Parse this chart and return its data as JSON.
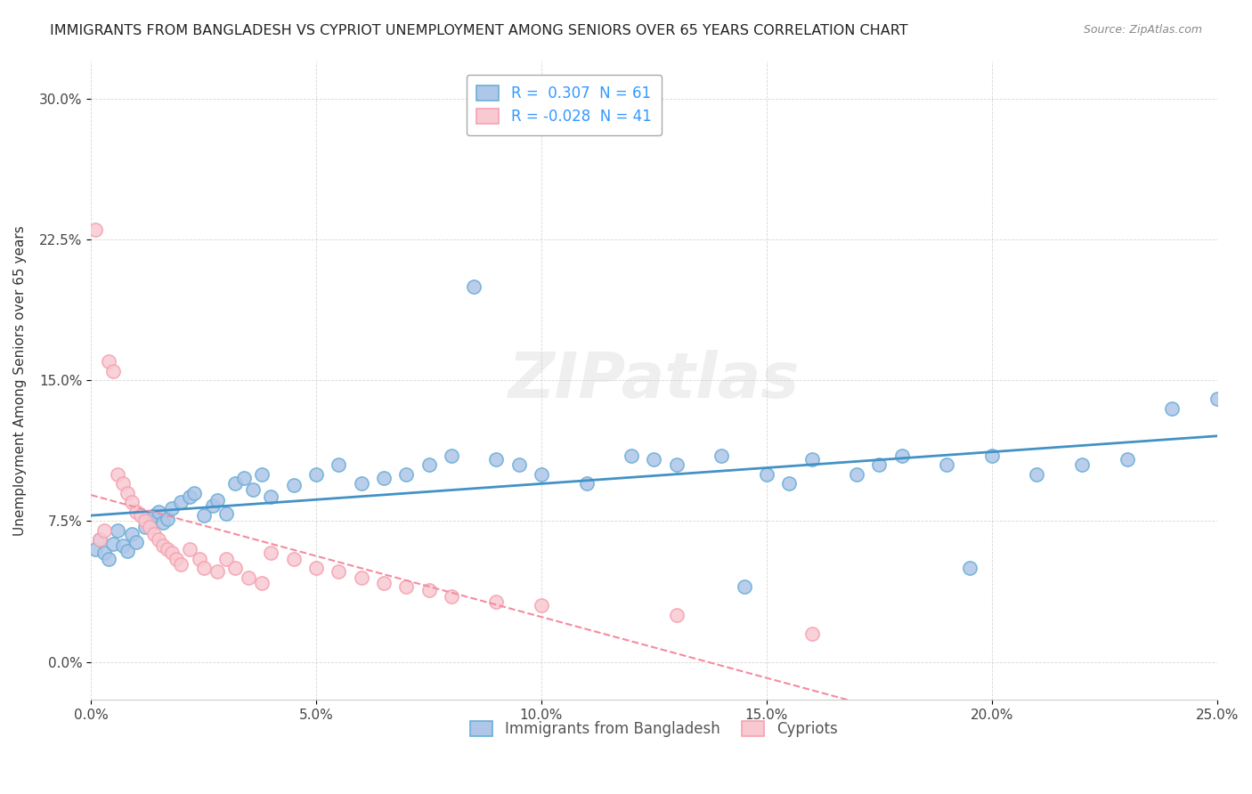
{
  "title": "IMMIGRANTS FROM BANGLADESH VS CYPRIOT UNEMPLOYMENT AMONG SENIORS OVER 65 YEARS CORRELATION CHART",
  "source": "Source: ZipAtlas.com",
  "xlabel": "",
  "ylabel": "Unemployment Among Seniors over 65 years",
  "xlim": [
    0.0,
    0.25
  ],
  "ylim": [
    -0.02,
    0.32
  ],
  "xticks": [
    0.0,
    0.05,
    0.1,
    0.15,
    0.2,
    0.25
  ],
  "yticks": [
    0.0,
    0.075,
    0.15,
    0.225,
    0.3
  ],
  "xtick_labels": [
    "0.0%",
    "5.0%",
    "10.0%",
    "15.0%",
    "20.0%",
    "25.0%"
  ],
  "ytick_labels": [
    "0.0%",
    "7.5%",
    "15.0%",
    "22.5%",
    "30.0%"
  ],
  "legend_r1": "R =  0.307",
  "legend_n1": "N = 61",
  "legend_r2": "R = -0.028",
  "legend_n2": "N = 41",
  "blue_color": "#6baed6",
  "blue_fill": "#aec6e8",
  "pink_color": "#f4a3b0",
  "pink_fill": "#f9c9d2",
  "blue_line_color": "#4292c6",
  "pink_line_color": "#f48ca0",
  "watermark": "ZIPatlas",
  "blue_scatter_x": [
    0.001,
    0.002,
    0.003,
    0.004,
    0.005,
    0.006,
    0.007,
    0.008,
    0.009,
    0.01,
    0.012,
    0.013,
    0.014,
    0.015,
    0.016,
    0.017,
    0.018,
    0.02,
    0.022,
    0.023,
    0.025,
    0.027,
    0.028,
    0.03,
    0.032,
    0.034,
    0.036,
    0.038,
    0.04,
    0.045,
    0.05,
    0.055,
    0.06,
    0.065,
    0.07,
    0.075,
    0.08,
    0.09,
    0.095,
    0.1,
    0.11,
    0.12,
    0.125,
    0.13,
    0.14,
    0.15,
    0.155,
    0.16,
    0.17,
    0.175,
    0.18,
    0.19,
    0.2,
    0.21,
    0.22,
    0.23,
    0.24,
    0.25,
    0.195,
    0.085,
    0.145
  ],
  "blue_scatter_y": [
    0.06,
    0.065,
    0.058,
    0.055,
    0.063,
    0.07,
    0.062,
    0.059,
    0.068,
    0.064,
    0.072,
    0.075,
    0.078,
    0.08,
    0.074,
    0.076,
    0.082,
    0.085,
    0.088,
    0.09,
    0.078,
    0.083,
    0.086,
    0.079,
    0.095,
    0.098,
    0.092,
    0.1,
    0.088,
    0.094,
    0.1,
    0.105,
    0.095,
    0.098,
    0.1,
    0.105,
    0.11,
    0.108,
    0.105,
    0.1,
    0.095,
    0.11,
    0.108,
    0.105,
    0.11,
    0.1,
    0.095,
    0.108,
    0.1,
    0.105,
    0.11,
    0.105,
    0.11,
    0.1,
    0.105,
    0.108,
    0.135,
    0.14,
    0.05,
    0.2,
    0.04
  ],
  "pink_scatter_x": [
    0.001,
    0.002,
    0.003,
    0.004,
    0.005,
    0.006,
    0.007,
    0.008,
    0.009,
    0.01,
    0.011,
    0.012,
    0.013,
    0.014,
    0.015,
    0.016,
    0.017,
    0.018,
    0.019,
    0.02,
    0.022,
    0.024,
    0.025,
    0.028,
    0.03,
    0.032,
    0.035,
    0.038,
    0.04,
    0.045,
    0.05,
    0.055,
    0.06,
    0.065,
    0.07,
    0.075,
    0.08,
    0.09,
    0.1,
    0.13,
    0.16
  ],
  "pink_scatter_y": [
    0.23,
    0.065,
    0.07,
    0.16,
    0.155,
    0.1,
    0.095,
    0.09,
    0.085,
    0.08,
    0.078,
    0.075,
    0.072,
    0.068,
    0.065,
    0.062,
    0.06,
    0.058,
    0.055,
    0.052,
    0.06,
    0.055,
    0.05,
    0.048,
    0.055,
    0.05,
    0.045,
    0.042,
    0.058,
    0.055,
    0.05,
    0.048,
    0.045,
    0.042,
    0.04,
    0.038,
    0.035,
    0.032,
    0.03,
    0.025,
    0.015
  ]
}
